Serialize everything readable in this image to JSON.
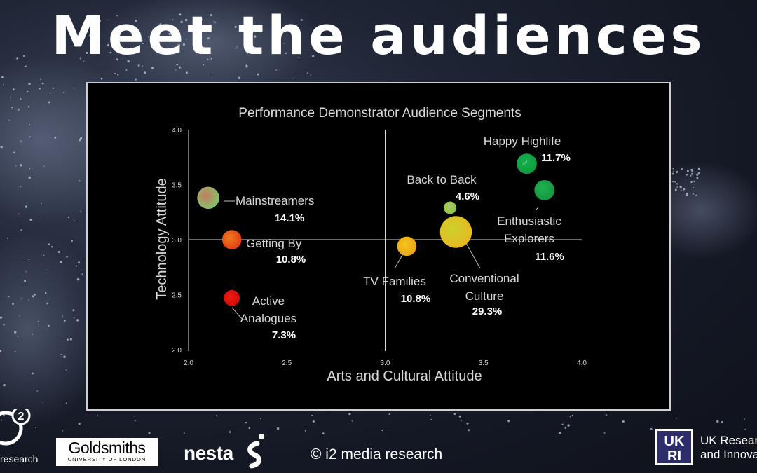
{
  "slide": {
    "title": "Meet the audiences"
  },
  "chart_data": {
    "type": "scatter",
    "title": "Performance Demonstrator Audience Segments",
    "xlabel": "Arts and Cultural Attitude",
    "ylabel": "Technology Attitude",
    "xlim": [
      2.0,
      4.0
    ],
    "ylim": [
      2.0,
      4.0
    ],
    "xticks": [
      "2.0",
      "2.5",
      "3.0",
      "3.5",
      "4.0"
    ],
    "yticks": [
      "2.0",
      "2.5",
      "3.0",
      "3.5",
      "4.0"
    ],
    "crosshair": {
      "x": 3.0,
      "y": 3.0
    },
    "points": [
      {
        "name": "Mainstreamers",
        "label_lines": [
          "Mainstreamers"
        ],
        "pct": "14.1%",
        "x": 2.1,
        "y": 3.38,
        "size_pct": 14.1,
        "color": "#c77a62",
        "color2": "#7dc86a"
      },
      {
        "name": "Getting By",
        "label_lines": [
          "Getting By"
        ],
        "pct": "10.8%",
        "x": 2.22,
        "y": 3.0,
        "size_pct": 10.8,
        "color": "#f07a1e",
        "color2": "#e23c14"
      },
      {
        "name": "Active Analogues",
        "label_lines": [
          "Active",
          "Analogues"
        ],
        "pct": "7.3%",
        "x": 2.22,
        "y": 2.47,
        "size_pct": 7.3,
        "color": "#ee1c12",
        "color2": "#d00a08"
      },
      {
        "name": "TV Families",
        "label_lines": [
          "TV Families"
        ],
        "pct": "10.8%",
        "x": 3.11,
        "y": 2.94,
        "size_pct": 10.8,
        "color": "#f7c31d",
        "color2": "#eaa416"
      },
      {
        "name": "Conventional Culture",
        "label_lines": [
          "Conventional",
          "Culture"
        ],
        "pct": "29.3%",
        "x": 3.36,
        "y": 3.07,
        "size_pct": 29.3,
        "color": "#cdd12e",
        "color2": "#e8b820"
      },
      {
        "name": "Back to Back",
        "label_lines": [
          "Back to Back"
        ],
        "pct": "4.6%",
        "x": 3.33,
        "y": 3.29,
        "size_pct": 4.6,
        "color": "#aacf55",
        "color2": "#8fc14c"
      },
      {
        "name": "Happy Highlife",
        "label_lines": [
          "Happy Highlife"
        ],
        "pct": "11.7%",
        "x": 3.72,
        "y": 3.69,
        "size_pct": 11.7,
        "color": "#13b24c",
        "color2": "#0f9a40"
      },
      {
        "name": "Enthusiastic Explorers",
        "label_lines": [
          "Enthusiastic",
          "Explorers"
        ],
        "pct": "11.6%",
        "x": 3.81,
        "y": 3.45,
        "size_pct": 11.6,
        "color": "#1fb14f",
        "color2": "#149640"
      }
    ]
  },
  "footer": {
    "i2_text": "research",
    "goldsmiths_name": "Goldsmiths",
    "goldsmiths_sub": "UNIVERSITY OF LONDON",
    "nesta": "nesta",
    "copyright": "© i2 media research",
    "ukri_line1": "UK Research",
    "ukri_line2": "and Innovation"
  }
}
